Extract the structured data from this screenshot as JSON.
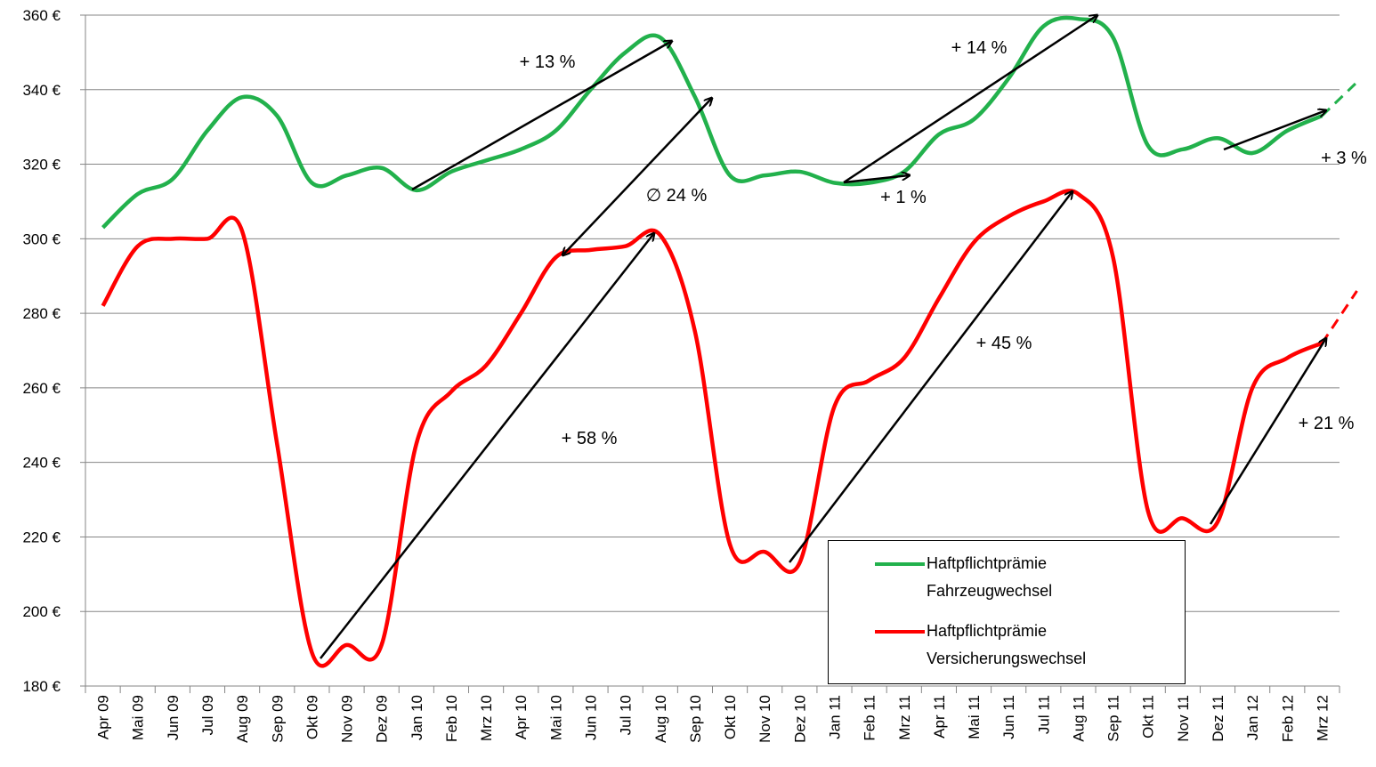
{
  "chart_data": {
    "type": "line",
    "categories": [
      "Apr 09",
      "Mai 09",
      "Jun 09",
      "Jul 09",
      "Aug 09",
      "Sep 09",
      "Okt 09",
      "Nov 09",
      "Dez 09",
      "Jan 10",
      "Feb 10",
      "Mrz 10",
      "Apr 10",
      "Mai 10",
      "Jun 10",
      "Jul 10",
      "Aug 10",
      "Sep 10",
      "Okt 10",
      "Nov 10",
      "Dez 10",
      "Jan 11",
      "Feb 11",
      "Mrz 11",
      "Apr 11",
      "Mai 11",
      "Jun 11",
      "Jul 11",
      "Aug 11",
      "Sep 11",
      "Okt 11",
      "Nov 11",
      "Dez 11",
      "Jan 12",
      "Feb 12",
      "Mrz 12",
      null
    ],
    "series": [
      {
        "name": "Haftpflichtprämie Fahrzeugwechsel",
        "color": "#22b14c",
        "values": [
          303,
          312,
          316,
          329,
          338,
          333,
          315,
          317,
          319,
          313,
          318,
          321,
          324,
          329,
          340,
          350,
          354,
          338,
          317,
          317,
          318,
          315,
          315,
          318,
          328,
          332,
          343,
          357,
          359,
          354,
          325,
          324,
          327,
          323,
          329,
          333,
          342
        ]
      },
      {
        "name": "Haftpflichtprämie Versicherungswechsel",
        "color": "#ff0000",
        "values": [
          282,
          298,
          300,
          300,
          302,
          245,
          189,
          191,
          191,
          245,
          259,
          266,
          280,
          295,
          297,
          298,
          301,
          275,
          218,
          216,
          213,
          255,
          262,
          268,
          284,
          299,
          306,
          310,
          312,
          295,
          227,
          225,
          224,
          260,
          268,
          272,
          286
        ]
      }
    ],
    "ylim": [
      180,
      360
    ],
    "yticks": [
      {
        "value": 180,
        "label": "180 €"
      },
      {
        "value": 200,
        "label": "200 €"
      },
      {
        "value": 220,
        "label": "220 €"
      },
      {
        "value": 240,
        "label": "240 €"
      },
      {
        "value": 260,
        "label": "260 €"
      },
      {
        "value": 280,
        "label": "280 €"
      },
      {
        "value": 300,
        "label": "300 €"
      },
      {
        "value": 320,
        "label": "320 €"
      },
      {
        "value": 340,
        "label": "340 €"
      },
      {
        "value": 360,
        "label": "360 €"
      }
    ],
    "grid": true,
    "annotations": [
      "+ 13 %",
      "+ 1 %",
      "+ 14 %",
      "+ 3 %",
      "∅  24 %",
      "+ 58 %",
      "+ 45 %",
      "+ 21 %"
    ]
  }
}
